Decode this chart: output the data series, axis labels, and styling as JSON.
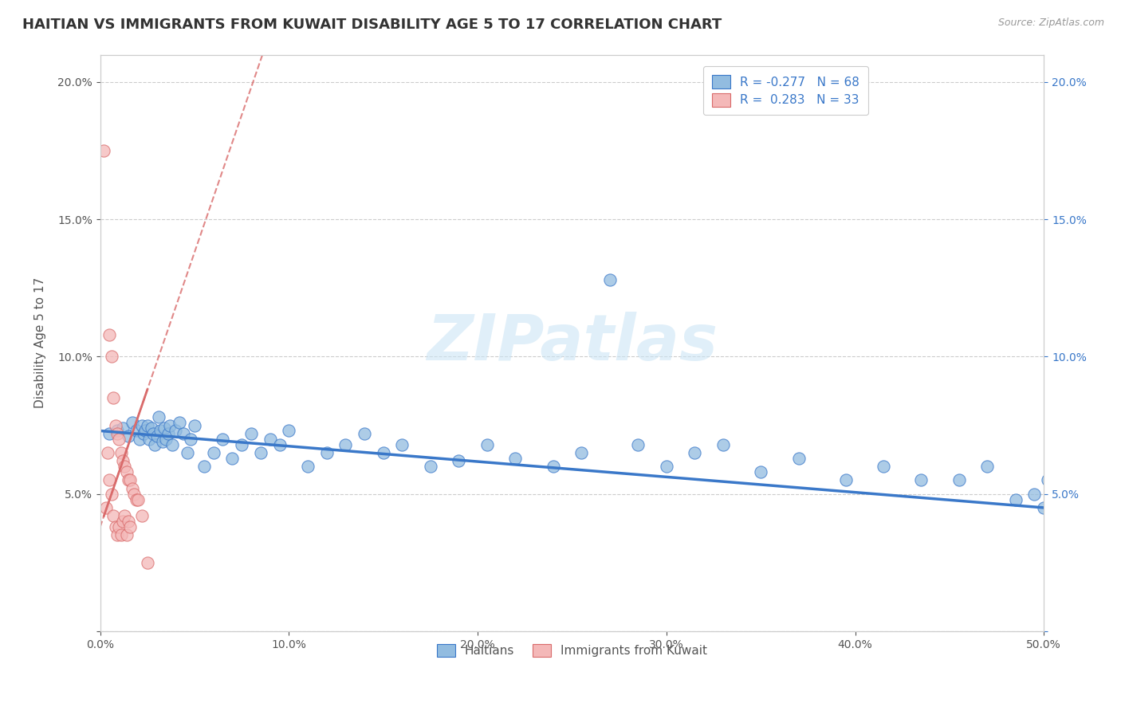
{
  "title": "HAITIAN VS IMMIGRANTS FROM KUWAIT DISABILITY AGE 5 TO 17 CORRELATION CHART",
  "source": "Source: ZipAtlas.com",
  "ylabel": "Disability Age 5 to 17",
  "xlim": [
    0.0,
    0.5
  ],
  "ylim": [
    0.0,
    0.21
  ],
  "blue_color": "#92bce0",
  "pink_color": "#f4b8b8",
  "blue_line_color": "#3a78c9",
  "pink_line_color": "#d96b6b",
  "watermark_text": "ZIPatlas",
  "blue_scatter_x": [
    0.005,
    0.009,
    0.012,
    0.015,
    0.017,
    0.019,
    0.021,
    0.022,
    0.023,
    0.024,
    0.025,
    0.026,
    0.027,
    0.028,
    0.029,
    0.03,
    0.031,
    0.032,
    0.033,
    0.034,
    0.035,
    0.036,
    0.037,
    0.038,
    0.04,
    0.042,
    0.044,
    0.046,
    0.048,
    0.05,
    0.055,
    0.06,
    0.065,
    0.07,
    0.075,
    0.08,
    0.085,
    0.09,
    0.095,
    0.1,
    0.11,
    0.12,
    0.13,
    0.14,
    0.15,
    0.16,
    0.175,
    0.19,
    0.205,
    0.22,
    0.24,
    0.255,
    0.27,
    0.285,
    0.3,
    0.315,
    0.33,
    0.35,
    0.37,
    0.395,
    0.415,
    0.435,
    0.455,
    0.47,
    0.485,
    0.495,
    0.5,
    0.502
  ],
  "blue_scatter_y": [
    0.072,
    0.073,
    0.074,
    0.071,
    0.076,
    0.073,
    0.07,
    0.075,
    0.072,
    0.073,
    0.075,
    0.07,
    0.074,
    0.072,
    0.068,
    0.071,
    0.078,
    0.073,
    0.069,
    0.074,
    0.07,
    0.072,
    0.075,
    0.068,
    0.073,
    0.076,
    0.072,
    0.065,
    0.07,
    0.075,
    0.06,
    0.065,
    0.07,
    0.063,
    0.068,
    0.072,
    0.065,
    0.07,
    0.068,
    0.073,
    0.06,
    0.065,
    0.068,
    0.072,
    0.065,
    0.068,
    0.06,
    0.062,
    0.068,
    0.063,
    0.06,
    0.065,
    0.128,
    0.068,
    0.06,
    0.065,
    0.068,
    0.058,
    0.063,
    0.055,
    0.06,
    0.055,
    0.055,
    0.06,
    0.048,
    0.05,
    0.045,
    0.055
  ],
  "pink_scatter_x": [
    0.002,
    0.003,
    0.004,
    0.005,
    0.005,
    0.006,
    0.006,
    0.007,
    0.007,
    0.008,
    0.008,
    0.009,
    0.009,
    0.01,
    0.01,
    0.011,
    0.011,
    0.012,
    0.012,
    0.013,
    0.013,
    0.014,
    0.014,
    0.015,
    0.015,
    0.016,
    0.016,
    0.017,
    0.018,
    0.019,
    0.02,
    0.022,
    0.025
  ],
  "pink_scatter_y": [
    0.175,
    0.045,
    0.065,
    0.108,
    0.055,
    0.1,
    0.05,
    0.085,
    0.042,
    0.075,
    0.038,
    0.072,
    0.035,
    0.07,
    0.038,
    0.065,
    0.035,
    0.062,
    0.04,
    0.06,
    0.042,
    0.058,
    0.035,
    0.055,
    0.04,
    0.055,
    0.038,
    0.052,
    0.05,
    0.048,
    0.048,
    0.042,
    0.025
  ]
}
